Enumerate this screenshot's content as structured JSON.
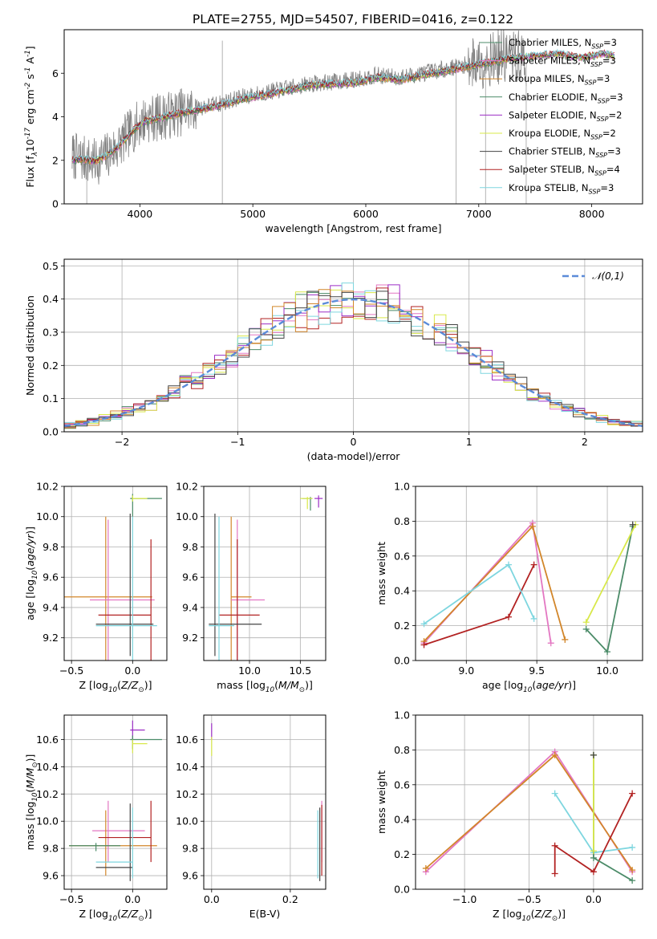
{
  "figure": {
    "title": "PLATE=2755, MJD=54507, FIBERID=0416, z=0.122"
  },
  "chart_data": [
    {
      "id": "spectrum",
      "type": "line",
      "xlabel": "wavelength [Angstrom, rest frame]",
      "ylabel": "Flux [f$_\\lambda$10$^{-17}$ erg cm$^{-2}$ s$^{-1}$ A$^{-1}$]",
      "xlim": [
        3330,
        8450
      ],
      "ylim": [
        0,
        8
      ],
      "xticks": [
        4000,
        5000,
        6000,
        7000,
        8000
      ],
      "yticks": [
        0,
        2,
        4,
        6
      ],
      "grid": false,
      "legend_position": "top-right",
      "data_series": {
        "color": "#808080",
        "anchors_x": [
          3400,
          3500,
          3600,
          3700,
          3800,
          3950,
          4050,
          4200,
          4350,
          4500,
          4700,
          4900,
          5100,
          5300,
          5500,
          5700,
          5900,
          6100,
          6300,
          6500,
          6700,
          6900,
          7050,
          7150,
          7250,
          7350,
          7420
        ],
        "anchors_y": [
          2.2,
          2.05,
          1.9,
          2.2,
          2.6,
          3.5,
          3.9,
          4.0,
          4.2,
          4.4,
          4.6,
          4.9,
          5.1,
          5.3,
          5.5,
          5.6,
          5.7,
          5.9,
          5.8,
          6.0,
          6.2,
          6.4,
          6.6,
          6.7,
          6.8,
          6.7,
          6.6
        ]
      },
      "model_x": [
        3400,
        3500,
        3600,
        3700,
        3800,
        3950,
        4050,
        4150,
        4300,
        4500,
        4700,
        4900,
        5100,
        5300,
        5500,
        5700,
        5900,
        6100,
        6300,
        6500,
        6700,
        6900,
        7100,
        7300,
        7500,
        7700,
        7900,
        8100,
        8200
      ],
      "model_y": [
        2.0,
        2.05,
        1.95,
        2.2,
        2.6,
        3.4,
        3.8,
        3.9,
        4.1,
        4.3,
        4.5,
        4.8,
        5.0,
        5.2,
        5.45,
        5.5,
        5.55,
        5.8,
        5.7,
        5.9,
        6.1,
        6.3,
        6.5,
        6.7,
        6.8,
        6.9,
        6.7,
        6.9,
        6.8
      ],
      "series": [
        {
          "name": "Chabrier MILES, N$_{SSP}$=3",
          "color": "#4b8b68"
        },
        {
          "name": "Salpeter MILES, N$_{SSP}$=3",
          "color": "#e377c2"
        },
        {
          "name": "Kroupa MILES, N$_{SSP}$=3",
          "color": "#d2862a"
        },
        {
          "name": "Chabrier ELODIE, N$_{SSP}$=3",
          "color": "#4b8b68"
        },
        {
          "name": "Salpeter ELODIE, N$_{SSP}$=2",
          "color": "#9c2fc6"
        },
        {
          "name": "Kroupa ELODIE, N$_{SSP}$=2",
          "color": "#d8e84a"
        },
        {
          "name": "Chabrier STELIB, N$_{SSP}$=3",
          "color": "#444444"
        },
        {
          "name": "Salpeter STELIB, N$_{SSP}$=4",
          "color": "#b22222"
        },
        {
          "name": "Kroupa STELIB, N$_{SSP}$=3",
          "color": "#7ed6df"
        }
      ]
    },
    {
      "id": "residual_hist",
      "type": "line",
      "xlabel": "(data-model)/error",
      "ylabel": "Normed distribution",
      "xlim": [
        -2.5,
        2.5
      ],
      "ylim": [
        0,
        0.52
      ],
      "xticks": [
        -2,
        -1,
        0,
        1,
        2
      ],
      "yticks": [
        0.0,
        0.1,
        0.2,
        0.3,
        0.4,
        0.5
      ],
      "grid": true,
      "legend_position": "top-right",
      "reference": {
        "name": "$\\mathcal{N}(0,1)$",
        "color": "#5b8bd8"
      },
      "hist_colors": [
        "#4b8b68",
        "#e377c2",
        "#d8e84a",
        "#9c2fc6",
        "#b22222",
        "#7ed6df",
        "#d2862a",
        "#444444"
      ]
    },
    {
      "id": "age_vs_Z",
      "type": "scatter",
      "xlabel": "Z [log$_{10}$($Z/Z_\\odot$)]",
      "ylabel": "age  [log$_{10}$($age/yr$)]",
      "xlim": [
        -0.56,
        0.28
      ],
      "ylim": [
        9.05,
        10.2
      ],
      "xticks": [
        -0.5,
        0.0
      ],
      "yticks": [
        9.2,
        9.4,
        9.6,
        9.8,
        10.0,
        10.2
      ],
      "grid": true,
      "points": [
        {
          "x": 0.0,
          "y": 10.12,
          "xe": [
            -0.02,
            0.24
          ],
          "ye": [
            10.0,
            10.15
          ],
          "color": "#4b8b68"
        },
        {
          "x": 0.0,
          "y": 10.12,
          "xe": [
            0.0,
            0.12
          ],
          "ye": [
            10.1,
            10.14
          ],
          "color": "#d8e84a"
        },
        {
          "x": -0.22,
          "y": 9.47,
          "xe": [
            -0.56,
            0.16
          ],
          "ye": [
            9.0,
            10.0
          ],
          "color": "#d2862a"
        },
        {
          "x": -0.2,
          "y": 9.45,
          "xe": [
            -0.35,
            0.18
          ],
          "ye": [
            9.0,
            9.98
          ],
          "color": "#e377c2"
        },
        {
          "x": 0.15,
          "y": 9.35,
          "xe": [
            -0.28,
            0.15
          ],
          "ye": [
            9.0,
            9.85
          ],
          "color": "#b22222"
        },
        {
          "x": -0.02,
          "y": 9.29,
          "xe": [
            -0.3,
            0.17
          ],
          "ye": [
            9.08,
            10.02
          ],
          "color": "#444444"
        },
        {
          "x": 0.0,
          "y": 9.28,
          "xe": [
            -0.3,
            0.2
          ],
          "ye": [
            9.05,
            10.0
          ],
          "color": "#7ed6df"
        }
      ]
    },
    {
      "id": "age_vs_mass",
      "type": "scatter",
      "xlabel": "mass [log$_{10}$($M/M_\\odot$)]",
      "ylabel": "",
      "xlim": [
        9.55,
        10.75
      ],
      "ylim": [
        9.05,
        10.2
      ],
      "xticks": [
        10.0,
        10.5
      ],
      "yticks": [
        9.2,
        9.4,
        9.6,
        9.8,
        10.0,
        10.2
      ],
      "grid": true,
      "points": [
        {
          "x": 10.6,
          "y": 10.12,
          "xe": [
            10.52,
            10.62
          ],
          "ye": [
            10.04,
            10.13
          ],
          "color": "#4b8b68"
        },
        {
          "x": 10.57,
          "y": 10.12,
          "xe": [
            10.5,
            10.62
          ],
          "ye": [
            10.05,
            10.13
          ],
          "color": "#d8e84a"
        },
        {
          "x": 10.68,
          "y": 10.12,
          "xe": [
            10.64,
            10.72
          ],
          "ye": [
            10.06,
            10.14
          ],
          "color": "#9c2fc6"
        },
        {
          "x": 9.82,
          "y": 9.47,
          "xe": [
            9.82,
            10.02
          ],
          "ye": [
            9.0,
            10.0
          ],
          "color": "#d2862a"
        },
        {
          "x": 9.88,
          "y": 9.45,
          "xe": [
            9.82,
            10.15
          ],
          "ye": [
            9.0,
            9.98
          ],
          "color": "#e377c2"
        },
        {
          "x": 9.88,
          "y": 9.35,
          "xe": [
            9.7,
            10.1
          ],
          "ye": [
            9.0,
            9.85
          ],
          "color": "#b22222"
        },
        {
          "x": 9.66,
          "y": 9.29,
          "xe": [
            9.6,
            10.12
          ],
          "ye": [
            9.08,
            10.02
          ],
          "color": "#444444"
        },
        {
          "x": 9.7,
          "y": 9.28,
          "xe": [
            9.6,
            9.85
          ],
          "ye": [
            9.05,
            10.0
          ],
          "color": "#7ed6df"
        }
      ]
    },
    {
      "id": "weight_vs_age",
      "type": "line",
      "xlabel": "age  [log$_{10}$($age/yr$)]",
      "ylabel": "mass weight",
      "xlim": [
        8.64,
        10.25
      ],
      "ylim": [
        0,
        1.0
      ],
      "xticks": [
        9.0,
        9.5,
        10.0
      ],
      "yticks": [
        0.0,
        0.2,
        0.4,
        0.6,
        0.8,
        1.0
      ],
      "grid": true,
      "series": [
        {
          "color": "#e377c2",
          "x": [
            8.7,
            9.47,
            9.6
          ],
          "y": [
            0.1,
            0.79,
            0.1
          ]
        },
        {
          "color": "#d2862a",
          "x": [
            8.7,
            9.47,
            9.7
          ],
          "y": [
            0.11,
            0.77,
            0.12
          ]
        },
        {
          "color": "#b22222",
          "x": [
            8.7,
            9.3,
            9.48
          ],
          "y": [
            0.09,
            0.25,
            0.55
          ]
        },
        {
          "color": "#7ed6df",
          "x": [
            8.7,
            9.3,
            9.48
          ],
          "y": [
            0.21,
            0.55,
            0.24
          ]
        },
        {
          "color": "#4b8b68",
          "x": [
            9.85,
            10.0,
            10.18
          ],
          "y": [
            0.18,
            0.05,
            0.77
          ]
        },
        {
          "color": "#d8e84a",
          "x": [
            9.85,
            10.2
          ],
          "y": [
            0.22,
            0.78
          ]
        },
        {
          "color": "#444444",
          "x": [
            10.18
          ],
          "y": [
            0.78
          ]
        }
      ]
    },
    {
      "id": "mass_vs_Z",
      "type": "scatter",
      "xlabel": "Z [log$_{10}$($Z/Z_\\odot$)]",
      "ylabel": "mass [log$_{10}$($M/M_\\odot$)]",
      "xlim": [
        -0.56,
        0.28
      ],
      "ylim": [
        9.5,
        10.78
      ],
      "xticks": [
        -0.5,
        0.0
      ],
      "yticks": [
        9.6,
        9.8,
        10.0,
        10.2,
        10.4,
        10.6
      ],
      "grid": true,
      "points": [
        {
          "x": 0.0,
          "y": 10.67,
          "xe": [
            -0.02,
            0.1
          ],
          "ye": [
            10.6,
            10.74
          ],
          "color": "#9c2fc6"
        },
        {
          "x": 0.0,
          "y": 10.6,
          "xe": [
            -0.02,
            0.24
          ],
          "ye": [
            10.53,
            10.63
          ],
          "color": "#4b8b68"
        },
        {
          "x": 0.0,
          "y": 10.57,
          "xe": [
            0.0,
            0.12
          ],
          "ye": [
            10.5,
            10.6
          ],
          "color": "#d8e84a"
        },
        {
          "x": -0.2,
          "y": 9.93,
          "xe": [
            -0.33,
            0.1
          ],
          "ye": [
            9.7,
            10.15
          ],
          "color": "#e377c2"
        },
        {
          "x": -0.22,
          "y": 9.82,
          "xe": [
            -0.52,
            0.2
          ],
          "ye": [
            9.6,
            10.08
          ],
          "color": "#d2862a"
        },
        {
          "x": 0.15,
          "y": 9.88,
          "xe": [
            -0.28,
            0.15
          ],
          "ye": [
            9.7,
            10.15
          ],
          "color": "#b22222"
        },
        {
          "x": -0.02,
          "y": 9.66,
          "xe": [
            -0.3,
            0.0
          ],
          "ye": [
            9.56,
            10.13
          ],
          "color": "#444444"
        },
        {
          "x": 0.0,
          "y": 9.7,
          "xe": [
            -0.3,
            0.0
          ],
          "ye": [
            9.58,
            10.1
          ],
          "color": "#7ed6df"
        },
        {
          "x": -0.3,
          "y": 9.82,
          "xe": [
            -0.52,
            -0.1
          ],
          "ye": [
            9.78,
            9.84
          ],
          "color": "#4b8b68"
        }
      ]
    },
    {
      "id": "mass_vs_ebv",
      "type": "scatter",
      "xlabel": "E(B-V)",
      "ylabel": "",
      "xlim": [
        -0.02,
        0.29
      ],
      "ylim": [
        9.5,
        10.78
      ],
      "xticks": [
        0.0,
        0.2
      ],
      "yticks": [
        9.6,
        9.8,
        10.0,
        10.2,
        10.4,
        10.6
      ],
      "grid": true,
      "points": [
        {
          "x": 0.0,
          "y": 10.67,
          "xe": [
            0.0,
            0.0
          ],
          "ye": [
            10.6,
            10.72
          ],
          "color": "#9c2fc6"
        },
        {
          "x": 0.0,
          "y": 10.57,
          "xe": [
            0.0,
            0.0
          ],
          "ye": [
            10.48,
            10.62
          ],
          "color": "#d8e84a"
        },
        {
          "x": 0.28,
          "y": 9.93,
          "xe": [
            0.28,
            0.28
          ],
          "ye": [
            9.7,
            10.15
          ],
          "color": "#e377c2"
        },
        {
          "x": 0.28,
          "y": 9.82,
          "xe": [
            0.28,
            0.28
          ],
          "ye": [
            9.6,
            10.12
          ],
          "color": "#b22222"
        },
        {
          "x": 0.275,
          "y": 9.7,
          "xe": [
            0.275,
            0.275
          ],
          "ye": [
            9.56,
            10.1
          ],
          "color": "#444444"
        },
        {
          "x": 0.27,
          "y": 9.7,
          "xe": [
            0.27,
            0.27
          ],
          "ye": [
            9.58,
            10.08
          ],
          "color": "#7ed6df"
        }
      ]
    },
    {
      "id": "weight_vs_Z",
      "type": "line",
      "xlabel": "Z [log$_{10}$($Z/Z_\\odot$)]",
      "ylabel": "mass weight",
      "xlim": [
        -1.38,
        0.38
      ],
      "ylim": [
        0,
        1.0
      ],
      "xticks": [
        -1.0,
        -0.5,
        0.0
      ],
      "yticks": [
        0.0,
        0.2,
        0.4,
        0.6,
        0.8,
        1.0
      ],
      "grid": true,
      "series": [
        {
          "color": "#e377c2",
          "x": [
            -1.3,
            -0.3,
            0.3
          ],
          "y": [
            0.1,
            0.79,
            0.1
          ]
        },
        {
          "color": "#d2862a",
          "x": [
            -1.3,
            -0.3,
            0.3
          ],
          "y": [
            0.12,
            0.77,
            0.11
          ]
        },
        {
          "color": "#7ed6df",
          "x": [
            -0.3,
            0.0,
            0.3
          ],
          "y": [
            0.55,
            0.21,
            0.24
          ]
        },
        {
          "color": "#b22222",
          "x": [
            -0.3,
            -0.3,
            0.0,
            0.3
          ],
          "y": [
            0.09,
            0.25,
            0.1,
            0.55
          ]
        },
        {
          "color": "#4b8b68",
          "x": [
            0.0,
            0.0,
            0.3
          ],
          "y": [
            0.77,
            0.18,
            0.05
          ]
        },
        {
          "color": "#d8e84a",
          "x": [
            0.0,
            0.0
          ],
          "y": [
            0.77,
            0.22
          ]
        },
        {
          "color": "#444444",
          "x": [
            0.0
          ],
          "y": [
            0.77
          ]
        }
      ]
    }
  ]
}
